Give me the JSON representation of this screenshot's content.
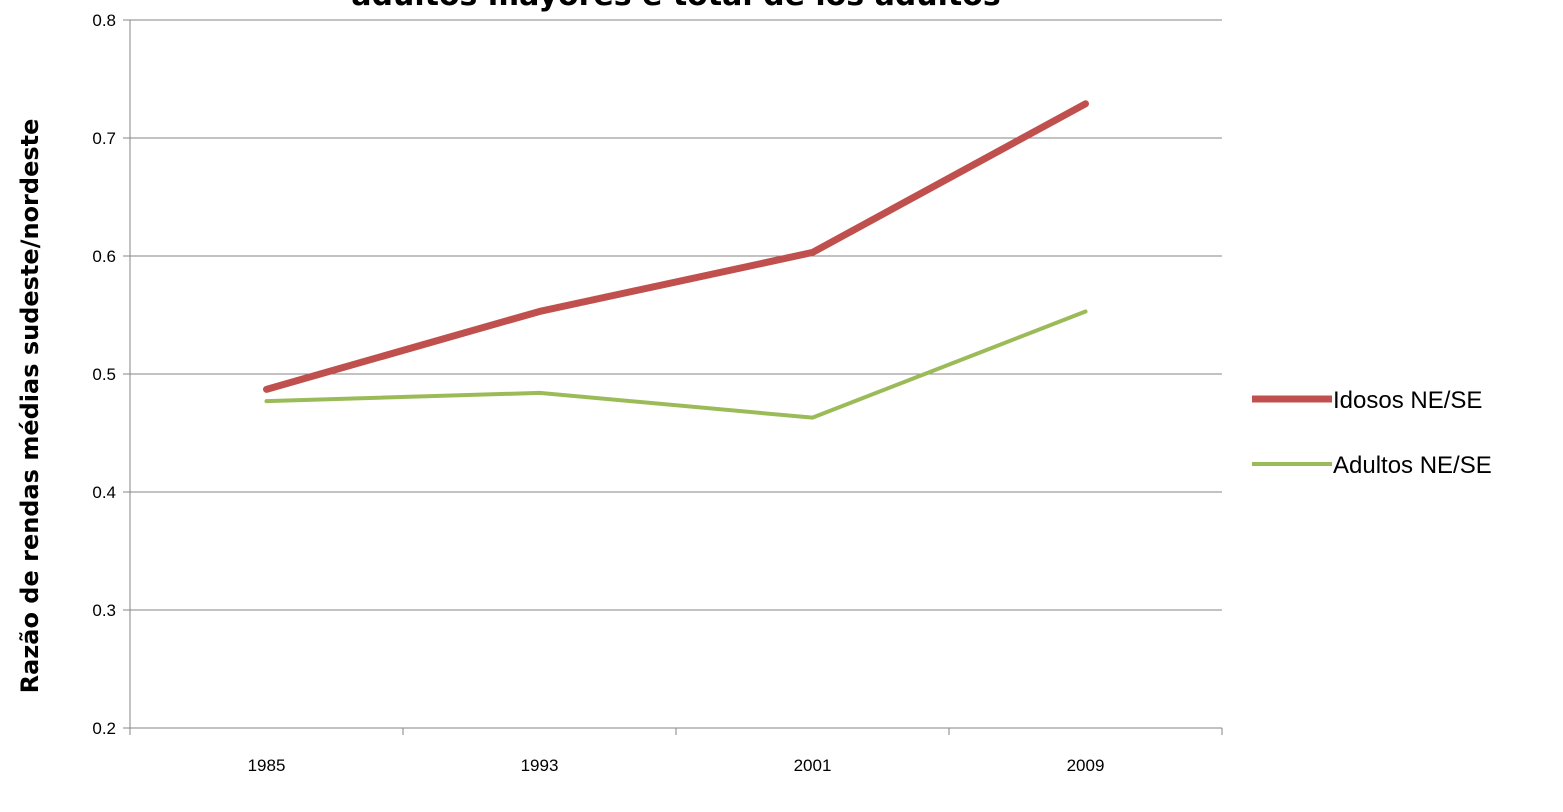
{
  "chart_data": {
    "type": "line",
    "title": "adultos mayores e total de los adultos",
    "ylabel": "Razão de rendas médias sudeste/nordeste",
    "xlabel": "",
    "categories": [
      "1985",
      "1993",
      "2001",
      "2009"
    ],
    "ylim": [
      0.2,
      0.8
    ],
    "yticks": [
      "0.2",
      "0.3",
      "0.4",
      "0.5",
      "0.6",
      "0.7",
      "0.8"
    ],
    "grid": true,
    "legend": "right",
    "series": [
      {
        "name": "Idosos NE/SE",
        "values": [
          0.487,
          0.553,
          0.603,
          0.729
        ],
        "color": "#c0504d"
      },
      {
        "name": "Adultos NE/SE",
        "values": [
          0.477,
          0.484,
          0.463,
          0.553
        ],
        "color": "#9bbb59"
      }
    ]
  }
}
